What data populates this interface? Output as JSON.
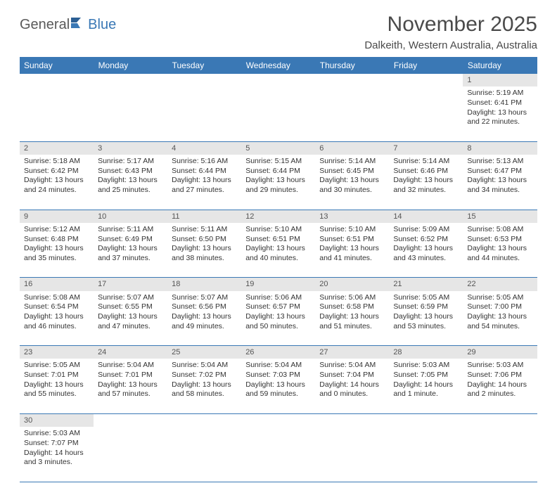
{
  "colors": {
    "header_bg": "#3a78b5",
    "header_text": "#ffffff",
    "daynum_bg": "#e6e6e6",
    "rule": "#3a78b5",
    "body_text": "#333333",
    "logo_gray": "#5a5a5a",
    "logo_blue": "#3a78b5"
  },
  "typography": {
    "title_fontsize": 30,
    "subtitle_fontsize": 15,
    "dayhead_fontsize": 12,
    "cell_fontsize": 10.5
  },
  "logo": {
    "part1": "General",
    "part2": "Blue"
  },
  "title": "November 2025",
  "subtitle": "Dalkeith, Western Australia, Australia",
  "day_headers": [
    "Sunday",
    "Monday",
    "Tuesday",
    "Wednesday",
    "Thursday",
    "Friday",
    "Saturday"
  ],
  "weeks": [
    [
      null,
      null,
      null,
      null,
      null,
      null,
      {
        "n": "1",
        "sr": "Sunrise: 5:19 AM",
        "ss": "Sunset: 6:41 PM",
        "d1": "Daylight: 13 hours",
        "d2": "and 22 minutes."
      }
    ],
    [
      {
        "n": "2",
        "sr": "Sunrise: 5:18 AM",
        "ss": "Sunset: 6:42 PM",
        "d1": "Daylight: 13 hours",
        "d2": "and 24 minutes."
      },
      {
        "n": "3",
        "sr": "Sunrise: 5:17 AM",
        "ss": "Sunset: 6:43 PM",
        "d1": "Daylight: 13 hours",
        "d2": "and 25 minutes."
      },
      {
        "n": "4",
        "sr": "Sunrise: 5:16 AM",
        "ss": "Sunset: 6:44 PM",
        "d1": "Daylight: 13 hours",
        "d2": "and 27 minutes."
      },
      {
        "n": "5",
        "sr": "Sunrise: 5:15 AM",
        "ss": "Sunset: 6:44 PM",
        "d1": "Daylight: 13 hours",
        "d2": "and 29 minutes."
      },
      {
        "n": "6",
        "sr": "Sunrise: 5:14 AM",
        "ss": "Sunset: 6:45 PM",
        "d1": "Daylight: 13 hours",
        "d2": "and 30 minutes."
      },
      {
        "n": "7",
        "sr": "Sunrise: 5:14 AM",
        "ss": "Sunset: 6:46 PM",
        "d1": "Daylight: 13 hours",
        "d2": "and 32 minutes."
      },
      {
        "n": "8",
        "sr": "Sunrise: 5:13 AM",
        "ss": "Sunset: 6:47 PM",
        "d1": "Daylight: 13 hours",
        "d2": "and 34 minutes."
      }
    ],
    [
      {
        "n": "9",
        "sr": "Sunrise: 5:12 AM",
        "ss": "Sunset: 6:48 PM",
        "d1": "Daylight: 13 hours",
        "d2": "and 35 minutes."
      },
      {
        "n": "10",
        "sr": "Sunrise: 5:11 AM",
        "ss": "Sunset: 6:49 PM",
        "d1": "Daylight: 13 hours",
        "d2": "and 37 minutes."
      },
      {
        "n": "11",
        "sr": "Sunrise: 5:11 AM",
        "ss": "Sunset: 6:50 PM",
        "d1": "Daylight: 13 hours",
        "d2": "and 38 minutes."
      },
      {
        "n": "12",
        "sr": "Sunrise: 5:10 AM",
        "ss": "Sunset: 6:51 PM",
        "d1": "Daylight: 13 hours",
        "d2": "and 40 minutes."
      },
      {
        "n": "13",
        "sr": "Sunrise: 5:10 AM",
        "ss": "Sunset: 6:51 PM",
        "d1": "Daylight: 13 hours",
        "d2": "and 41 minutes."
      },
      {
        "n": "14",
        "sr": "Sunrise: 5:09 AM",
        "ss": "Sunset: 6:52 PM",
        "d1": "Daylight: 13 hours",
        "d2": "and 43 minutes."
      },
      {
        "n": "15",
        "sr": "Sunrise: 5:08 AM",
        "ss": "Sunset: 6:53 PM",
        "d1": "Daylight: 13 hours",
        "d2": "and 44 minutes."
      }
    ],
    [
      {
        "n": "16",
        "sr": "Sunrise: 5:08 AM",
        "ss": "Sunset: 6:54 PM",
        "d1": "Daylight: 13 hours",
        "d2": "and 46 minutes."
      },
      {
        "n": "17",
        "sr": "Sunrise: 5:07 AM",
        "ss": "Sunset: 6:55 PM",
        "d1": "Daylight: 13 hours",
        "d2": "and 47 minutes."
      },
      {
        "n": "18",
        "sr": "Sunrise: 5:07 AM",
        "ss": "Sunset: 6:56 PM",
        "d1": "Daylight: 13 hours",
        "d2": "and 49 minutes."
      },
      {
        "n": "19",
        "sr": "Sunrise: 5:06 AM",
        "ss": "Sunset: 6:57 PM",
        "d1": "Daylight: 13 hours",
        "d2": "and 50 minutes."
      },
      {
        "n": "20",
        "sr": "Sunrise: 5:06 AM",
        "ss": "Sunset: 6:58 PM",
        "d1": "Daylight: 13 hours",
        "d2": "and 51 minutes."
      },
      {
        "n": "21",
        "sr": "Sunrise: 5:05 AM",
        "ss": "Sunset: 6:59 PM",
        "d1": "Daylight: 13 hours",
        "d2": "and 53 minutes."
      },
      {
        "n": "22",
        "sr": "Sunrise: 5:05 AM",
        "ss": "Sunset: 7:00 PM",
        "d1": "Daylight: 13 hours",
        "d2": "and 54 minutes."
      }
    ],
    [
      {
        "n": "23",
        "sr": "Sunrise: 5:05 AM",
        "ss": "Sunset: 7:01 PM",
        "d1": "Daylight: 13 hours",
        "d2": "and 55 minutes."
      },
      {
        "n": "24",
        "sr": "Sunrise: 5:04 AM",
        "ss": "Sunset: 7:01 PM",
        "d1": "Daylight: 13 hours",
        "d2": "and 57 minutes."
      },
      {
        "n": "25",
        "sr": "Sunrise: 5:04 AM",
        "ss": "Sunset: 7:02 PM",
        "d1": "Daylight: 13 hours",
        "d2": "and 58 minutes."
      },
      {
        "n": "26",
        "sr": "Sunrise: 5:04 AM",
        "ss": "Sunset: 7:03 PM",
        "d1": "Daylight: 13 hours",
        "d2": "and 59 minutes."
      },
      {
        "n": "27",
        "sr": "Sunrise: 5:04 AM",
        "ss": "Sunset: 7:04 PM",
        "d1": "Daylight: 14 hours",
        "d2": "and 0 minutes."
      },
      {
        "n": "28",
        "sr": "Sunrise: 5:03 AM",
        "ss": "Sunset: 7:05 PM",
        "d1": "Daylight: 14 hours",
        "d2": "and 1 minute."
      },
      {
        "n": "29",
        "sr": "Sunrise: 5:03 AM",
        "ss": "Sunset: 7:06 PM",
        "d1": "Daylight: 14 hours",
        "d2": "and 2 minutes."
      }
    ],
    [
      {
        "n": "30",
        "sr": "Sunrise: 5:03 AM",
        "ss": "Sunset: 7:07 PM",
        "d1": "Daylight: 14 hours",
        "d2": "and 3 minutes."
      },
      null,
      null,
      null,
      null,
      null,
      null
    ]
  ]
}
